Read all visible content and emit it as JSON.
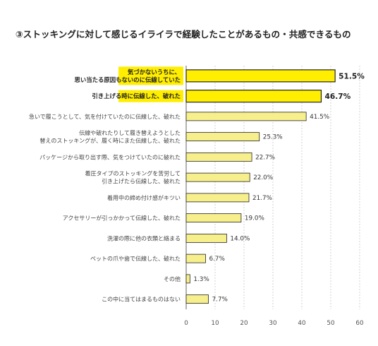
{
  "chart_data": {
    "type": "bar",
    "orientation": "horizontal",
    "title": "③ストッキングに対して感じるイライラで経験したことがあるもの・共感できるもの",
    "categories": [
      [
        "気づかないうちに、",
        "思い当たる原因もないのに伝線していた"
      ],
      [
        "引き上げる時に伝線した、破れた"
      ],
      [
        "急いで履こうとして、気を付けていたのに伝線した、破れた"
      ],
      [
        "伝線や破れたりして履き替えようとした",
        "替えのストッキングが、履く時にまた伝線した、破れた"
      ],
      [
        "パッケージから取り出す際、気をつけていたのに破れた"
      ],
      [
        "着圧タイプのストッキングを苦労して",
        "引き上げたら伝線した、破れた"
      ],
      [
        "着用中の締め付け感がキツい"
      ],
      [
        "アクセサリーが引っかかって伝線した、破れた"
      ],
      [
        "洗濯の際に他の衣類と絡まる"
      ],
      [
        "ペットの爪や歯で伝線した、破れた"
      ],
      [
        "その他"
      ],
      [
        "この中に当てはまるものはない"
      ]
    ],
    "values": [
      51.5,
      46.7,
      41.5,
      25.3,
      22.7,
      22.0,
      21.7,
      19.0,
      14.0,
      6.7,
      1.3,
      7.7
    ],
    "value_labels": [
      "51.5%",
      "46.7%",
      "41.5%",
      "25.3%",
      "22.7%",
      "22.0%",
      "21.7%",
      "19.0%",
      "14.0%",
      "6.7%",
      "1.3%",
      "7.7%"
    ],
    "highlighted": [
      true,
      true,
      false,
      false,
      false,
      false,
      false,
      false,
      false,
      false,
      false,
      false
    ],
    "x_ticks": [
      "0",
      "10",
      "20",
      "30",
      "40",
      "50",
      "60"
    ],
    "xlim": [
      0,
      60
    ],
    "xlabel": "",
    "ylabel": "",
    "grid": "vertical-dashed",
    "legend": "none",
    "colors": {
      "highlight_bar": "#ffee00",
      "normal_bar": "#f7ef8c",
      "bar_border": "#222222",
      "grid": "#c8c8c8"
    }
  }
}
